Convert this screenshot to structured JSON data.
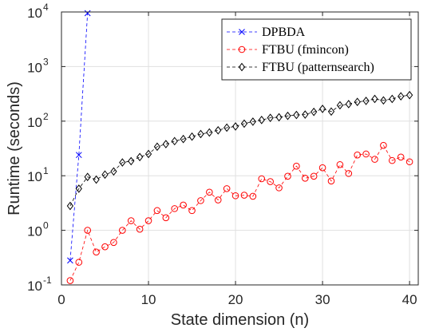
{
  "chart_data": {
    "type": "line",
    "title": "",
    "xlabel": "State dimension (n)",
    "ylabel": "Runtime (seconds)",
    "xlim": [
      0,
      41
    ],
    "ylim": [
      0.1,
      10000
    ],
    "yscale": "log",
    "grid": true,
    "legend_position": "top-right",
    "xticks": [
      0,
      10,
      20,
      30,
      40
    ],
    "yticks": [
      {
        "value": 0.1,
        "base": "10",
        "exp": "-1"
      },
      {
        "value": 1,
        "base": "10",
        "exp": "0"
      },
      {
        "value": 10,
        "base": "10",
        "exp": "1"
      },
      {
        "value": 100,
        "base": "10",
        "exp": "2"
      },
      {
        "value": 1000,
        "base": "10",
        "exp": "3"
      },
      {
        "value": 10000,
        "base": "10",
        "exp": "4"
      }
    ],
    "series": [
      {
        "name": "DPBDA",
        "color": "#0000ff",
        "marker": "x",
        "x": [
          1,
          2,
          3
        ],
        "values": [
          0.28,
          24,
          9500
        ]
      },
      {
        "name": "FTBU (fmincon)",
        "color": "#ff0000",
        "marker": "o",
        "x": [
          1,
          2,
          3,
          4,
          5,
          6,
          7,
          8,
          9,
          10,
          11,
          12,
          13,
          14,
          15,
          16,
          17,
          18,
          19,
          20,
          21,
          22,
          23,
          24,
          25,
          26,
          27,
          28,
          29,
          30,
          31,
          32,
          33,
          34,
          35,
          36,
          37,
          38,
          39,
          40
        ],
        "values": [
          0.12,
          0.26,
          1.0,
          0.4,
          0.5,
          0.6,
          1.0,
          1.5,
          1.05,
          1.5,
          2.3,
          1.7,
          2.5,
          2.9,
          2.3,
          3.5,
          5.0,
          3.6,
          5.8,
          4.3,
          4.4,
          4.2,
          8.8,
          7.8,
          6.0,
          9.8,
          15.0,
          9.0,
          9.8,
          14.0,
          8.0,
          16.0,
          11.0,
          24.0,
          25.0,
          20.0,
          36.0,
          19.0,
          22.0,
          18.0
        ]
      },
      {
        "name": "FTBU (patternsearch)",
        "color": "#000000",
        "marker": "diamond",
        "x": [
          1,
          2,
          3,
          4,
          5,
          6,
          7,
          8,
          9,
          10,
          11,
          12,
          13,
          14,
          15,
          16,
          17,
          18,
          19,
          20,
          21,
          22,
          23,
          24,
          25,
          26,
          27,
          28,
          29,
          30,
          31,
          32,
          33,
          34,
          35,
          36,
          37,
          38,
          39,
          40
        ],
        "values": [
          2.8,
          5.8,
          9.5,
          8.5,
          10.5,
          12.0,
          17.5,
          18.5,
          22.0,
          25.0,
          34.0,
          38.0,
          43.0,
          47.0,
          52.0,
          58.0,
          62.0,
          68.0,
          76.0,
          80.0,
          90.0,
          98.0,
          105.0,
          115.0,
          118.0,
          125.0,
          130.0,
          132.0,
          148.0,
          168.0,
          150.0,
          195.0,
          205.0,
          225.0,
          235.0,
          255.0,
          240.0,
          255.0,
          285.0,
          300.0
        ]
      }
    ]
  }
}
